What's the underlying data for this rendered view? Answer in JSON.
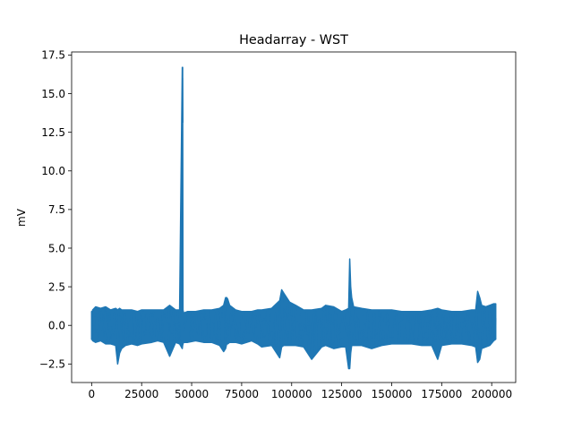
{
  "chart_data": {
    "type": "line",
    "title": "Headarray - WST",
    "xlabel": "",
    "ylabel": "mV",
    "xlim": [
      -10000,
      212000
    ],
    "ylim": [
      -3.7,
      17.7
    ],
    "xticks": [
      0,
      25000,
      50000,
      75000,
      100000,
      125000,
      150000,
      175000,
      200000
    ],
    "xtick_labels": [
      "0",
      "25000",
      "50000",
      "75000",
      "100000",
      "125000",
      "150000",
      "175000",
      "200000"
    ],
    "yticks": [
      -2.5,
      0.0,
      2.5,
      5.0,
      7.5,
      10.0,
      12.5,
      15.0,
      17.5
    ],
    "ytick_labels": [
      "−2.5",
      "0.0",
      "2.5",
      "5.0",
      "7.5",
      "10.0",
      "12.5",
      "15.0",
      "17.5"
    ],
    "grid": false,
    "legend": "none",
    "line_color": "#1f77b4",
    "series": [
      {
        "x": [
          0,
          200,
          500,
          2000,
          4500,
          7000,
          9500,
          12000,
          13000,
          14000,
          15000,
          17000,
          20000,
          23000,
          25000,
          30000,
          33000,
          36000,
          39000,
          42000,
          44000,
          45300,
          45500,
          45700,
          46000,
          48000,
          52000,
          56000,
          60000,
          64000,
          66000,
          67000,
          67500,
          68000,
          69000,
          72000,
          75000,
          80000,
          83000,
          85000,
          90000,
          94000,
          95000,
          96000,
          99000,
          102000,
          106000,
          110000,
          115000,
          117000,
          121000,
          125000,
          127000,
          128500,
          129000,
          129500,
          130000,
          131000,
          135000,
          140000,
          145000,
          150000,
          155000,
          160000,
          165000,
          170000,
          173000,
          175000,
          180000,
          185000,
          190000,
          192000,
          193000,
          194000,
          195000,
          197000,
          199000,
          201000,
          202000
        ],
        "max": [
          0.9,
          0.8,
          1.0,
          1.2,
          1.1,
          1.2,
          1.0,
          1.1,
          1.0,
          1.1,
          1.0,
          1.0,
          1.0,
          0.9,
          1.0,
          1.0,
          1.0,
          1.0,
          1.3,
          1.0,
          1.0,
          16.7,
          16.7,
          1.0,
          0.8,
          0.9,
          0.9,
          1.0,
          1.0,
          1.1,
          1.3,
          1.8,
          1.8,
          1.7,
          1.3,
          1.0,
          0.9,
          0.9,
          1.0,
          1.0,
          1.1,
          1.6,
          2.3,
          2.1,
          1.5,
          1.3,
          1.0,
          1.0,
          1.1,
          1.3,
          1.2,
          0.9,
          1.0,
          1.1,
          4.3,
          2.5,
          1.8,
          1.2,
          1.1,
          1.0,
          1.0,
          1.0,
          0.9,
          0.9,
          0.9,
          1.0,
          1.1,
          1.0,
          0.9,
          0.9,
          1.0,
          1.0,
          2.2,
          1.8,
          1.3,
          1.2,
          1.3,
          1.4,
          1.4
        ],
        "min": [
          -0.9,
          -0.9,
          -1.0,
          -1.1,
          -1.0,
          -1.2,
          -1.2,
          -1.3,
          -2.5,
          -1.8,
          -1.5,
          -1.3,
          -1.2,
          -1.3,
          -1.2,
          -1.1,
          -1.0,
          -1.1,
          -2.0,
          -1.1,
          -1.2,
          -1.5,
          -1.3,
          -1.2,
          -1.1,
          -1.1,
          -1.0,
          -1.1,
          -1.1,
          -1.3,
          -1.7,
          -1.5,
          -1.2,
          -1.2,
          -1.1,
          -1.1,
          -1.2,
          -1.0,
          -1.2,
          -1.4,
          -1.3,
          -2.1,
          -1.4,
          -1.3,
          -1.3,
          -1.3,
          -1.4,
          -2.2,
          -1.4,
          -1.3,
          -1.5,
          -1.4,
          -1.4,
          -2.8,
          -2.8,
          -1.8,
          -1.3,
          -1.3,
          -1.3,
          -1.5,
          -1.3,
          -1.2,
          -1.2,
          -1.2,
          -1.3,
          -1.3,
          -2.2,
          -1.3,
          -1.2,
          -1.2,
          -1.3,
          -1.4,
          -2.4,
          -2.2,
          -1.5,
          -1.4,
          -1.3,
          -1.0,
          -0.9
        ]
      }
    ]
  }
}
